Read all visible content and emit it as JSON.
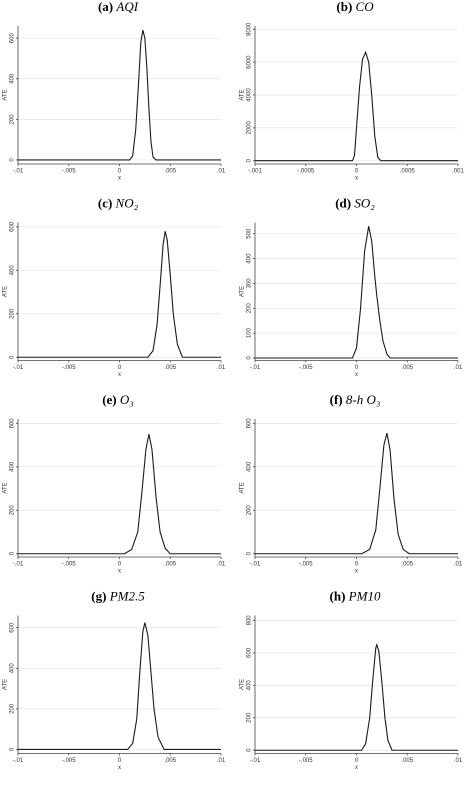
{
  "chart_data": [
    {
      "type": "line",
      "panel": "(a)",
      "title": "AQI",
      "x_label": "x",
      "y_label": "ATE",
      "color": "#1a1a1a",
      "grid": true,
      "x": [
        -0.01,
        0.001,
        0.0013,
        0.0016,
        0.0019,
        0.0021,
        0.0023,
        0.0025,
        0.0027,
        0.0029,
        0.0031,
        0.0033,
        0.0036,
        0.01
      ],
      "values": [
        0,
        0,
        20,
        150,
        400,
        580,
        640,
        600,
        450,
        250,
        90,
        15,
        0,
        0
      ],
      "xlim": [
        -0.01,
        0.01
      ],
      "ylim": [
        -20,
        660
      ],
      "xticks": [
        {
          "value": -0.01,
          "label": "-.01"
        },
        {
          "value": -0.005,
          "label": "-.005"
        },
        0,
        {
          "value": 0.005,
          "label": ".005"
        },
        {
          "value": 0.01,
          "label": ".01"
        }
      ],
      "yticks": [
        0,
        200,
        400,
        600
      ]
    },
    {
      "type": "line",
      "panel": "(b)",
      "title": "CO",
      "x_label": "x",
      "y_label": "ATE",
      "color": "#1a1a1a",
      "grid": true,
      "x": [
        -0.001,
        -4e-05,
        -2e-05,
        0,
        3e-05,
        6e-05,
        9e-05,
        0.00012,
        0.00015,
        0.00018,
        0.00021,
        0.00024,
        0.001
      ],
      "values": [
        0,
        0,
        300,
        2000,
        4500,
        6200,
        6600,
        6000,
        4000,
        1500,
        200,
        0,
        0
      ],
      "xlim": [
        -0.001,
        0.001
      ],
      "ylim": [
        -200,
        8200
      ],
      "xticks": [
        {
          "value": -0.001,
          "label": "-.001"
        },
        {
          "value": -0.0005,
          "label": "-.0005"
        },
        0,
        {
          "value": 0.0005,
          "label": ".0005"
        },
        {
          "value": 0.001,
          "label": ".001"
        }
      ],
      "yticks": [
        0,
        2000,
        4000,
        6000,
        8000
      ]
    },
    {
      "type": "line",
      "panel": "(c)",
      "title": "NO₂",
      "x_label": "x",
      "y_label": "ATE",
      "color": "#1a1a1a",
      "grid": true,
      "x": [
        -0.01,
        0.0028,
        0.0033,
        0.0037,
        0.004,
        0.0043,
        0.0045,
        0.0047,
        0.005,
        0.0053,
        0.0057,
        0.0062,
        0.01
      ],
      "values": [
        0,
        0,
        30,
        150,
        330,
        520,
        580,
        540,
        380,
        200,
        60,
        0,
        0
      ],
      "xlim": [
        -0.01,
        0.01
      ],
      "ylim": [
        -15,
        620
      ],
      "xticks": [
        {
          "value": -0.01,
          "label": "-.01"
        },
        {
          "value": -0.005,
          "label": "-.005"
        },
        0,
        {
          "value": 0.005,
          "label": ".005"
        },
        {
          "value": 0.01,
          "label": ".01"
        }
      ],
      "yticks": [
        0,
        200,
        400,
        600
      ]
    },
    {
      "type": "line",
      "panel": "(d)",
      "title": "SO₂",
      "x_label": "x",
      "y_label": "ATE",
      "color": "#1a1a1a",
      "grid": true,
      "x": [
        -0.01,
        -0.0004,
        0,
        0.0004,
        0.0008,
        0.0012,
        0.0015,
        0.0018,
        0.002,
        0.0023,
        0.0026,
        0.003,
        0.0033,
        0.01
      ],
      "values": [
        0,
        0,
        40,
        200,
        430,
        530,
        470,
        330,
        250,
        150,
        70,
        15,
        0,
        0
      ],
      "xlim": [
        -0.01,
        0.01
      ],
      "ylim": [
        -10,
        545
      ],
      "xticks": [
        {
          "value": -0.01,
          "label": "-.01"
        },
        {
          "value": -0.005,
          "label": "-.005"
        },
        0,
        {
          "value": 0.005,
          "label": ".005"
        },
        {
          "value": 0.01,
          "label": ".01"
        }
      ],
      "yticks": [
        0,
        100,
        200,
        300,
        400,
        500
      ]
    },
    {
      "type": "line",
      "panel": "(e)",
      "title": "O₃",
      "x_label": "x",
      "y_label": "ATE",
      "color": "#1a1a1a",
      "grid": true,
      "x": [
        -0.01,
        0.0005,
        0.0012,
        0.0018,
        0.0022,
        0.0026,
        0.0029,
        0.0032,
        0.0036,
        0.004,
        0.0045,
        0.005,
        0.01
      ],
      "values": [
        0,
        0,
        20,
        100,
        280,
        480,
        550,
        480,
        260,
        100,
        25,
        0,
        0
      ],
      "xlim": [
        -0.01,
        0.01
      ],
      "ylim": [
        -15,
        620
      ],
      "xticks": [
        {
          "value": -0.01,
          "label": "-.01"
        },
        {
          "value": -0.005,
          "label": "-.005"
        },
        0,
        {
          "value": 0.005,
          "label": ".005"
        },
        {
          "value": 0.01,
          "label": ".01"
        }
      ],
      "yticks": [
        0,
        200,
        400,
        600
      ]
    },
    {
      "type": "line",
      "panel": "(f)",
      "title": "8-h O₃",
      "x_label": "x",
      "y_label": "ATE",
      "color": "#1a1a1a",
      "grid": true,
      "x": [
        -0.01,
        0.0005,
        0.0013,
        0.0019,
        0.0023,
        0.0027,
        0.003,
        0.0033,
        0.0037,
        0.0041,
        0.0046,
        0.0052,
        0.01
      ],
      "values": [
        0,
        0,
        20,
        110,
        300,
        500,
        555,
        480,
        250,
        90,
        20,
        0,
        0
      ],
      "xlim": [
        -0.01,
        0.01
      ],
      "ylim": [
        -15,
        620
      ],
      "xticks": [
        {
          "value": -0.01,
          "label": "-.01"
        },
        {
          "value": -0.005,
          "label": "-.005"
        },
        0,
        {
          "value": 0.005,
          "label": ".005"
        },
        {
          "value": 0.01,
          "label": ".01"
        }
      ],
      "yticks": [
        0,
        200,
        400,
        600
      ]
    },
    {
      "type": "line",
      "panel": "(g)",
      "title": "PM2.5",
      "x_label": "x",
      "y_label": "ATE",
      "color": "#1a1a1a",
      "grid": true,
      "x": [
        -0.01,
        0.0008,
        0.0013,
        0.0017,
        0.002,
        0.0023,
        0.0025,
        0.0028,
        0.0031,
        0.0034,
        0.0038,
        0.0044,
        0.01
      ],
      "values": [
        0,
        0,
        30,
        150,
        380,
        580,
        625,
        560,
        380,
        200,
        60,
        0,
        0
      ],
      "xlim": [
        -0.01,
        0.01
      ],
      "ylim": [
        -20,
        660
      ],
      "xticks": [
        {
          "value": -0.01,
          "label": "-.01"
        },
        {
          "value": -0.005,
          "label": "-.005"
        },
        0,
        {
          "value": 0.005,
          "label": ".005"
        },
        {
          "value": 0.01,
          "label": ".01"
        }
      ],
      "yticks": [
        0,
        200,
        400,
        600
      ]
    },
    {
      "type": "line",
      "panel": "(h)",
      "title": "PM10",
      "x_label": "x",
      "y_label": "ATE",
      "color": "#1a1a1a",
      "grid": true,
      "x": [
        -0.01,
        0.0005,
        0.0009,
        0.0013,
        0.0016,
        0.0019,
        0.002,
        0.0022,
        0.0025,
        0.0028,
        0.0031,
        0.0035,
        0.01
      ],
      "values": [
        0,
        0,
        40,
        200,
        430,
        630,
        650,
        610,
        420,
        200,
        60,
        0,
        0
      ],
      "xlim": [
        -0.01,
        0.01
      ],
      "ylim": [
        -20,
        830
      ],
      "xticks": [
        {
          "value": -0.01,
          "label": "-.01"
        },
        {
          "value": -0.005,
          "label": "-.005"
        },
        0,
        {
          "value": 0.005,
          "label": ".005"
        },
        {
          "value": 0.01,
          "label": ".01"
        }
      ],
      "yticks": [
        0,
        200,
        400,
        600,
        800
      ]
    }
  ]
}
